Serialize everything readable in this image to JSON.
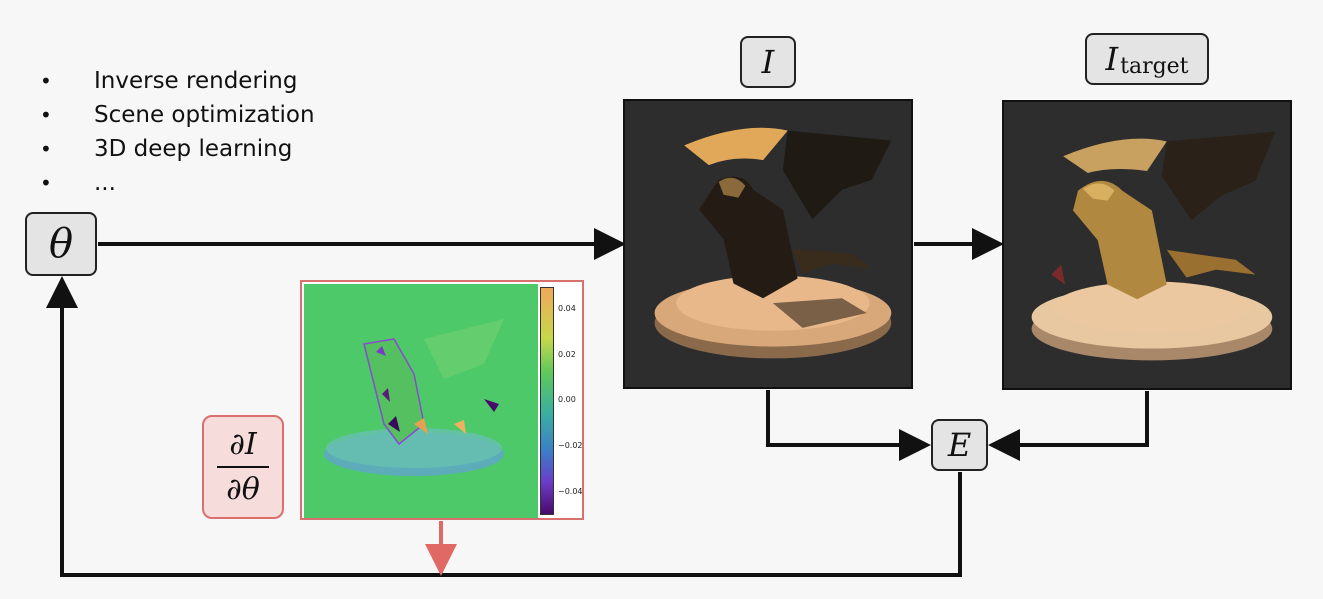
{
  "bullets": [
    "Inverse rendering",
    "Scene optimization",
    "3D deep learning",
    "..."
  ],
  "nodes": {
    "theta": "θ",
    "rendered": "I",
    "target_main": "I",
    "target_sub": "target",
    "error": "E",
    "deriv_num": "∂I",
    "deriv_den": "∂θ"
  },
  "colorbar_ticks": [
    "0.04",
    "0.02",
    "0.00",
    "−0.02",
    "−0.04"
  ],
  "colors": {
    "gradient_accent": "#d9706e",
    "arrow": "#111111",
    "render_bg": "#2d2d2d",
    "gradient_bg": "#4dc969"
  }
}
